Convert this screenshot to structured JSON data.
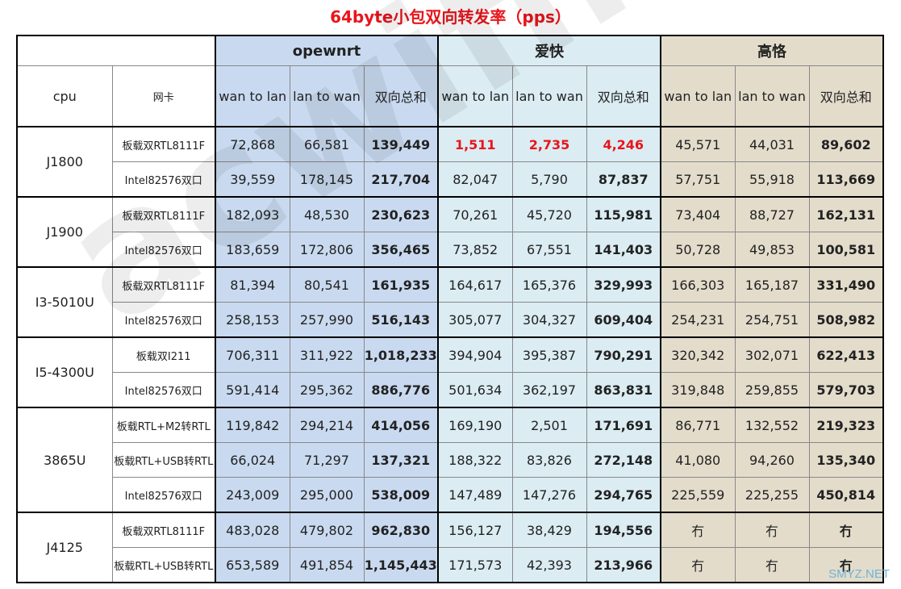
{
  "chart_data": {
    "type": "table",
    "title": "64byte小包双向转发率（pps）",
    "groups": [
      "opewnrt",
      "爱快",
      "高恪"
    ],
    "header": {
      "cpu": "cpu",
      "nic": "网卡",
      "sub": [
        "wan to lan",
        "lan to wan",
        "双向总和"
      ]
    },
    "cpus": [
      {
        "name": "J1800",
        "rows": [
          {
            "nic": "板载双RTL8111F",
            "values": [
              "72,868",
              "66,581",
              "139,449",
              "1,511",
              "2,735",
              "4,246",
              "45,571",
              "44,031",
              "89,602"
            ],
            "highlight": [
              3,
              4,
              5
            ]
          },
          {
            "nic": "Intel82576双口",
            "values": [
              "39,559",
              "178,145",
              "217,704",
              "82,047",
              "5,790",
              "87,837",
              "57,751",
              "55,918",
              "113,669"
            ]
          }
        ]
      },
      {
        "name": "J1900",
        "rows": [
          {
            "nic": "板载双RTL8111F",
            "values": [
              "182,093",
              "48,530",
              "230,623",
              "70,261",
              "45,720",
              "115,981",
              "73,404",
              "88,727",
              "162,131"
            ]
          },
          {
            "nic": "Intel82576双口",
            "values": [
              "183,659",
              "172,806",
              "356,465",
              "73,852",
              "67,551",
              "141,403",
              "50,728",
              "49,853",
              "100,581"
            ]
          }
        ]
      },
      {
        "name": "I3-5010U",
        "rows": [
          {
            "nic": "板载双RTL8111F",
            "values": [
              "81,394",
              "80,541",
              "161,935",
              "164,617",
              "165,376",
              "329,993",
              "166,303",
              "165,187",
              "331,490"
            ]
          },
          {
            "nic": "Intel82576双口",
            "values": [
              "258,153",
              "257,990",
              "516,143",
              "305,077",
              "304,327",
              "609,404",
              "254,231",
              "254,751",
              "508,982"
            ]
          }
        ]
      },
      {
        "name": "I5-4300U",
        "rows": [
          {
            "nic": "板载双I211",
            "values": [
              "706,311",
              "311,922",
              "1,018,233",
              "394,904",
              "395,387",
              "790,291",
              "320,342",
              "302,071",
              "622,413"
            ]
          },
          {
            "nic": "Intel82576双口",
            "values": [
              "591,414",
              "295,362",
              "886,776",
              "501,634",
              "362,197",
              "863,831",
              "319,848",
              "259,855",
              "579,703"
            ]
          }
        ]
      },
      {
        "name": "3865U",
        "rows": [
          {
            "nic": "板载RTL+M2转RTL",
            "values": [
              "119,842",
              "294,214",
              "414,056",
              "169,190",
              "2,501",
              "171,691",
              "86,771",
              "132,552",
              "219,323"
            ]
          },
          {
            "nic": "板载RTL+USB转RTL",
            "values": [
              "66,024",
              "71,297",
              "137,321",
              "188,322",
              "83,826",
              "272,148",
              "41,080",
              "94,260",
              "135,340"
            ]
          },
          {
            "nic": "Intel82576双口",
            "values": [
              "243,009",
              "295,000",
              "538,009",
              "147,489",
              "147,276",
              "294,765",
              "225,559",
              "225,255",
              "450,814"
            ]
          }
        ]
      },
      {
        "name": "J4125",
        "rows": [
          {
            "nic": "板载双RTL8111F",
            "values": [
              "483,028",
              "479,802",
              "962,830",
              "156,127",
              "38,429",
              "194,556",
              "冇",
              "冇",
              "冇"
            ]
          },
          {
            "nic": "板载RTL+USB转RTL",
            "values": [
              "653,589",
              "491,854",
              "1,145,443",
              "171,573",
              "42,393",
              "213,966",
              "冇",
              "冇",
              "冇"
            ]
          }
        ]
      }
    ]
  },
  "watermark": "acwifi.net",
  "corner_watermark": "SMYZ.NET"
}
